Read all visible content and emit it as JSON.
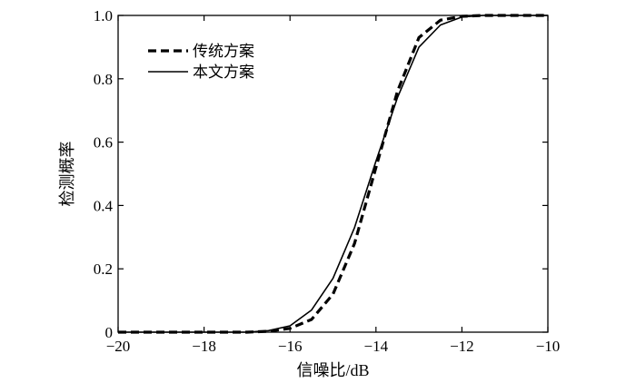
{
  "chart_data": {
    "type": "line",
    "xlabel": "信噪比/dB",
    "ylabel": "检测概率",
    "xlim": [
      -20,
      -10
    ],
    "ylim": [
      0,
      1.0
    ],
    "x_ticks": [
      -20,
      -18,
      -16,
      -14,
      -12,
      -10
    ],
    "x_tick_labels": [
      "−20",
      "−18",
      "−16",
      "−14",
      "−12",
      "−10"
    ],
    "y_ticks": [
      0,
      0.2,
      0.4,
      0.6,
      0.8,
      1.0
    ],
    "y_tick_labels": [
      "0",
      "0.2",
      "0.4",
      "0.6",
      "0.8",
      "1.0"
    ],
    "grid": false,
    "legend_position": "top-left",
    "series": [
      {
        "name": "传统方案",
        "style": "dashed",
        "color": "#000000",
        "x": [
          -20,
          -17,
          -16.5,
          -16,
          -15.5,
          -15,
          -14.5,
          -14,
          -13.5,
          -13,
          -12.5,
          -12,
          -11.5,
          -10
        ],
        "y": [
          0,
          0,
          0.003,
          0.012,
          0.04,
          0.12,
          0.28,
          0.52,
          0.76,
          0.93,
          0.985,
          0.997,
          1.0,
          1.0
        ]
      },
      {
        "name": "本文方案",
        "style": "solid",
        "color": "#000000",
        "x": [
          -20,
          -17,
          -16.5,
          -16,
          -15.5,
          -15,
          -14.5,
          -14,
          -13.5,
          -13,
          -12.5,
          -12,
          -11.5,
          -10
        ],
        "y": [
          0,
          0,
          0.005,
          0.02,
          0.07,
          0.17,
          0.33,
          0.54,
          0.74,
          0.9,
          0.97,
          0.995,
          1.0,
          1.0
        ]
      }
    ]
  }
}
